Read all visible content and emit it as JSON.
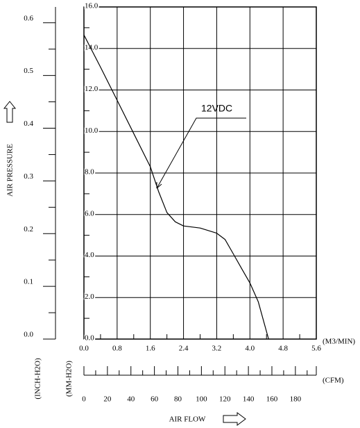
{
  "chart_data": {
    "type": "line",
    "ylabel": "AIR PRESSURE",
    "xlabel": "AIR FLOW",
    "y_unit": "(MM-H2O)",
    "y2_unit": "(INCH-H2O)",
    "x_unit": "(M3/MIN)",
    "x2_unit": "(CFM)",
    "xlim": [
      0,
      5.6
    ],
    "xticks": [
      {
        "value": 0,
        "label": "0.0"
      },
      0.8,
      1.6,
      2.4,
      3.2,
      {
        "value": 4,
        "label": "4.0"
      },
      4.8,
      5.6
    ],
    "ylim": [
      0,
      16
    ],
    "yticks": [
      {
        "value": 0,
        "label": "0.0"
      },
      {
        "value": 2,
        "label": "2.0"
      },
      {
        "value": 4,
        "label": "4.0"
      },
      {
        "value": 6,
        "label": "6.0"
      },
      {
        "value": 8,
        "label": "8.0"
      },
      {
        "value": 10,
        "label": "10.0"
      },
      {
        "value": 12,
        "label": "12.0"
      },
      {
        "value": 14,
        "label": "14.0"
      },
      {
        "value": 16,
        "label": "16.0"
      }
    ],
    "y2lim": [
      0,
      0.63
    ],
    "y2ticks": [
      {
        "value": 0,
        "label": "0.0"
      },
      0.1,
      0.2,
      0.3,
      0.4,
      0.5,
      0.6
    ],
    "x2lim": [
      0,
      197.8
    ],
    "x2ticks": [
      0,
      20,
      40,
      60,
      80,
      100,
      120,
      140,
      160,
      180
    ],
    "grid": true,
    "series": [
      {
        "name": "12VDC",
        "color": "#000000",
        "x": [
          0,
          0.4,
          0.8,
          1.2,
          1.6,
          1.8,
          2.0,
          2.2,
          2.4,
          2.8,
          3.2,
          3.4,
          3.6,
          3.8,
          4.0,
          4.2,
          4.45
        ],
        "values": [
          14.65,
          13.1,
          11.5,
          9.9,
          8.3,
          7.1,
          6.1,
          5.65,
          5.45,
          5.35,
          5.1,
          4.8,
          4.1,
          3.4,
          2.7,
          1.8,
          0
        ]
      }
    ]
  }
}
